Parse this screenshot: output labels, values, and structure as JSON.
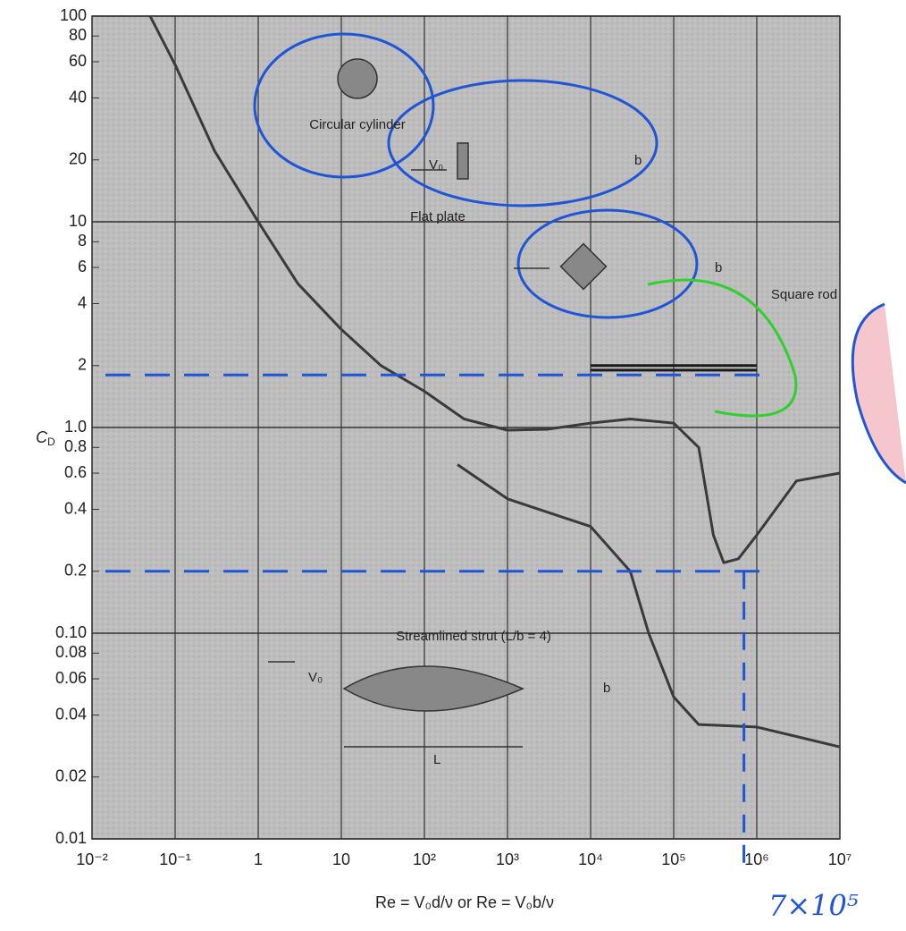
{
  "chart_data": {
    "type": "line",
    "x_label": "Re = V₀d/ν  or  Re = V₀b/ν",
    "y_label": {
      "main": "C",
      "sub": "D"
    },
    "log_x": true,
    "log_y": true,
    "grid": true,
    "xlim": [
      0.01,
      10000000
    ],
    "ylim": [
      0.01,
      100
    ],
    "xticks": [
      {
        "value": 0.01,
        "label": "10⁻²"
      },
      {
        "value": 0.1,
        "label": "10⁻¹"
      },
      1,
      10,
      {
        "value": 100,
        "label": "10²"
      },
      {
        "value": 1000,
        "label": "10³"
      },
      {
        "value": 10000,
        "label": "10⁴"
      },
      {
        "value": 100000,
        "label": "10⁵"
      },
      {
        "value": 1000000,
        "label": "10⁶"
      },
      {
        "value": 10000000,
        "label": "10⁷"
      }
    ],
    "yticks": [
      0.01,
      0.02,
      0.04,
      0.06,
      0.08,
      {
        "value": 0.1,
        "label": "0.10"
      },
      0.2,
      0.4,
      0.6,
      0.8,
      {
        "value": 1,
        "label": "1.0"
      },
      2,
      4,
      6,
      8,
      10,
      20,
      40,
      60,
      80,
      100
    ],
    "series": [
      {
        "name": "Circular cylinder",
        "color": "#3a3a3a",
        "x": [
          0.05,
          0.1,
          0.3,
          1,
          3,
          10,
          30,
          100,
          300,
          1000,
          3000,
          10000,
          30000,
          100000,
          200000,
          300000,
          400000,
          600000,
          1000000,
          3000000,
          10000000
        ],
        "values": [
          100,
          58,
          22,
          10,
          5,
          3,
          2,
          1.5,
          1.1,
          0.97,
          0.98,
          1.05,
          1.1,
          1.05,
          0.8,
          0.3,
          0.22,
          0.23,
          0.3,
          0.55,
          0.6
        ]
      },
      {
        "name": "Flat plate",
        "color": "#1a1a1a",
        "x": [
          10000,
          1000000
        ],
        "values": [
          1.9,
          1.9
        ]
      },
      {
        "name": "Square rod",
        "color": "#1a1a1a",
        "x": [
          10000,
          1000000
        ],
        "values": [
          2.0,
          2.0
        ]
      },
      {
        "name": "Streamlined strut (L/b = 4)",
        "color": "#3a3a3a",
        "x": [
          250,
          1000,
          10000,
          30000,
          50000,
          100000,
          200000,
          1000000,
          10000000
        ],
        "values": [
          0.66,
          0.45,
          0.33,
          0.2,
          0.1,
          0.049,
          0.036,
          0.035,
          0.028
        ]
      }
    ],
    "reference_lines": {
      "y": [
        1.8,
        0.2
      ],
      "x": 700000,
      "color": "#1f55d6"
    },
    "note": "7×10⁵",
    "diagram_labels": {
      "velocity": "V₀",
      "width": "b",
      "length": "L"
    }
  }
}
